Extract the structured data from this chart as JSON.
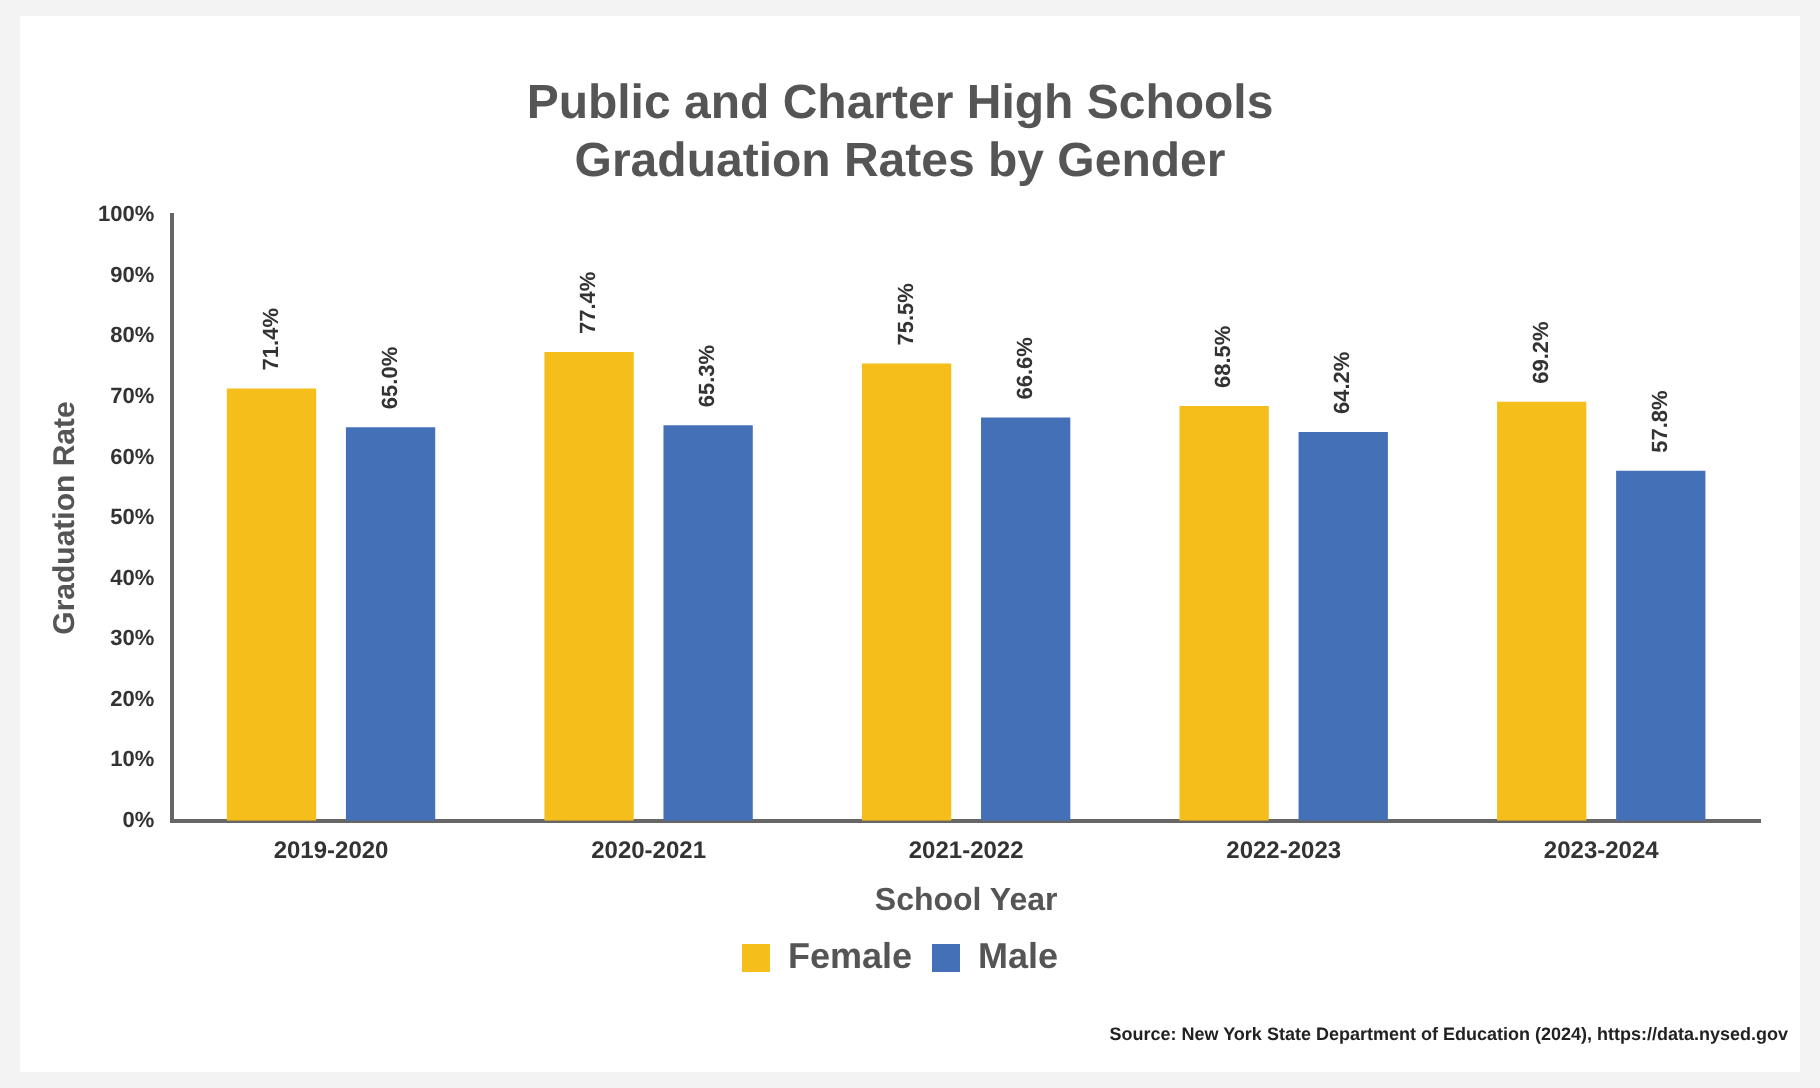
{
  "chart_data": {
    "type": "bar",
    "title": [
      "Public and Charter High Schools",
      "Graduation Rates by Gender"
    ],
    "xlabel": "School Year",
    "ylabel": "Graduation Rate",
    "categories": [
      "2019-2020",
      "2020-2021",
      "2021-2022",
      "2022-2023",
      "2023-2024"
    ],
    "series": [
      {
        "name": "Female",
        "color": "#f5be1b",
        "values": [
          71.4,
          77.4,
          75.5,
          68.5,
          69.2
        ],
        "value_labels": [
          "71.4%",
          "77.4%",
          "75.5%",
          "68.5%",
          "69.2%"
        ]
      },
      {
        "name": "Male",
        "color": "#4470b8",
        "values": [
          65.0,
          65.3,
          66.6,
          64.2,
          57.8
        ],
        "value_labels": [
          "65.0%",
          "65.3%",
          "66.6%",
          "64.2%",
          "57.8%"
        ]
      }
    ],
    "ylim": [
      0,
      100
    ],
    "yticks": [
      {
        "value": 0,
        "label": "0%"
      },
      {
        "value": 10,
        "label": "10%"
      },
      {
        "value": 20,
        "label": "20%"
      },
      {
        "value": 30,
        "label": "30%"
      },
      {
        "value": 40,
        "label": "40%"
      },
      {
        "value": 50,
        "label": "50%"
      },
      {
        "value": 60,
        "label": "60%"
      },
      {
        "value": 70,
        "label": "70%"
      },
      {
        "value": 80,
        "label": "80%"
      },
      {
        "value": 90,
        "label": "90%"
      },
      {
        "value": 100,
        "label": "100%"
      }
    ],
    "grid": false,
    "legend": "bottom",
    "annotations": [
      "Source: New York State Department of Education (2024), https://data.nysed.gov"
    ]
  }
}
